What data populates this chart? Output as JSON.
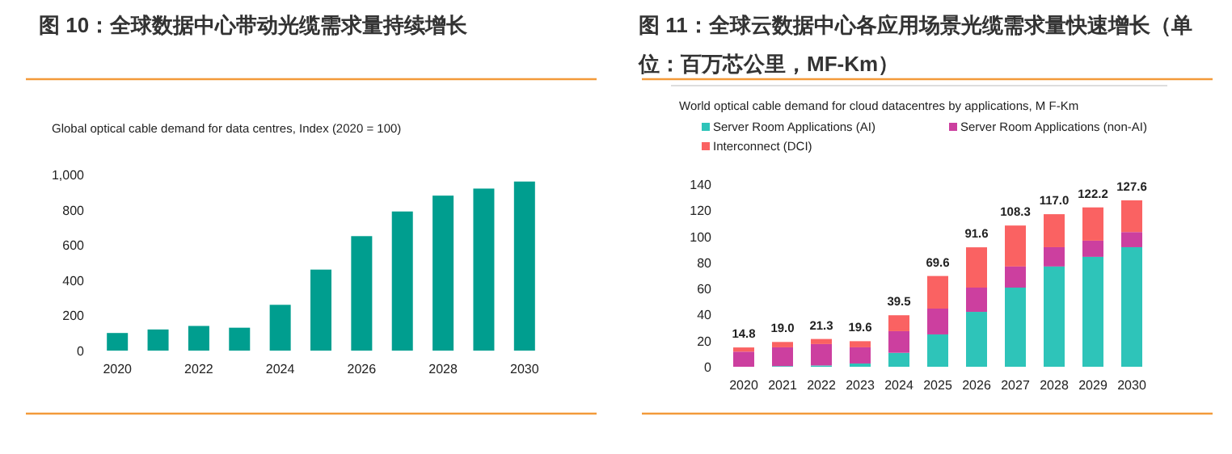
{
  "chart_data": [
    {
      "type": "bar",
      "title": "图 10：全球数据中心带动光缆需求量持续增长",
      "subtitle": "Global optical cable demand for data centres, Index (2020 = 100)",
      "categories": [
        "2020",
        null,
        "2022",
        null,
        "2024",
        null,
        "2026",
        null,
        "2028",
        null,
        "2030"
      ],
      "values": [
        100,
        120,
        140,
        130,
        260,
        460,
        650,
        790,
        880,
        920,
        960
      ],
      "color": "#009e8f",
      "ylim": [
        0,
        1000
      ],
      "yticks": [
        0,
        200,
        400,
        600,
        800,
        {
          "value": 1000,
          "label": "1,000"
        }
      ],
      "grid": false,
      "legend": false
    },
    {
      "type": "bar",
      "title": "图 11：全球云数据中心各应用场景光缆需求量快速增长（单位：百万芯公里，MF-Km）",
      "subtitle": "World optical cable demand for cloud datacentres by applications, M F-Km",
      "categories": [
        "2020",
        "2021",
        "2022",
        "2023",
        "2024",
        "2025",
        "2026",
        "2027",
        "2028",
        "2029",
        "2030"
      ],
      "stacked": true,
      "series": [
        {
          "name": "Server Room Applications (AI)",
          "color": "#2ec4b9",
          "values": [
            0,
            0.5,
            1.0,
            2.5,
            10.7,
            24.8,
            42.1,
            60.7,
            76.9,
            84.3,
            91.7
          ]
        },
        {
          "name": "Server Room Applications (non-AI)",
          "color": "#cc3f9f",
          "values": [
            11.6,
            14.4,
            16.4,
            12.4,
            16.6,
            19.8,
            18.6,
            16.2,
            14.8,
            12.4,
            11.6
          ]
        },
        {
          "name": "Interconnect (DCI)",
          "color": "#fa6262",
          "values": [
            3.2,
            4.1,
            3.9,
            4.7,
            12.2,
            25.0,
            30.9,
            31.4,
            25.3,
            25.5,
            24.3
          ]
        }
      ],
      "totals": [
        "14.8",
        "19.0",
        "21.3",
        "19.6",
        "39.5",
        "69.6",
        "91.6",
        "108.3",
        "117.0",
        "122.2",
        "127.6"
      ],
      "ylim": [
        0,
        140
      ],
      "yticks": [
        0,
        20,
        40,
        60,
        80,
        100,
        120,
        140
      ],
      "grid": false,
      "legend": "top left"
    }
  ]
}
